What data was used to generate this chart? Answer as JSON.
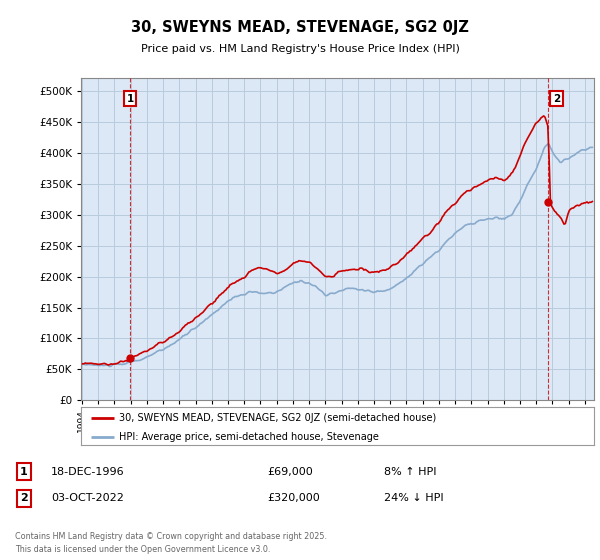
{
  "title": "30, SWEYNS MEAD, STEVENAGE, SG2 0JZ",
  "subtitle": "Price paid vs. HM Land Registry's House Price Index (HPI)",
  "legend_label_red": "30, SWEYNS MEAD, STEVENAGE, SG2 0JZ (semi-detached house)",
  "legend_label_blue": "HPI: Average price, semi-detached house, Stevenage",
  "transaction1_date": "18-DEC-1996",
  "transaction1_price": "£69,000",
  "transaction1_hpi": "8% ↑ HPI",
  "transaction2_date": "03-OCT-2022",
  "transaction2_price": "£320,000",
  "transaction2_hpi": "24% ↓ HPI",
  "footer": "Contains HM Land Registry data © Crown copyright and database right 2025.\nThis data is licensed under the Open Government Licence v3.0.",
  "ylim": [
    0,
    520000
  ],
  "yticks": [
    0,
    50000,
    100000,
    150000,
    200000,
    250000,
    300000,
    350000,
    400000,
    450000,
    500000
  ],
  "color_red": "#cc0000",
  "color_blue": "#88aacc",
  "background_color": "#ffffff",
  "chart_bg_color": "#dce8f5",
  "grid_color": "#b8ccdd",
  "hatch_bg_color": "#c8d8e8"
}
